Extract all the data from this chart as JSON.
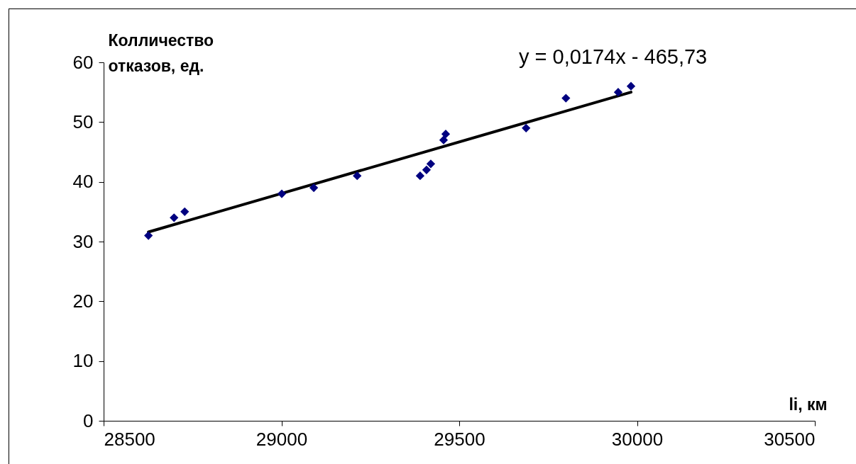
{
  "chart_data": {
    "type": "scatter",
    "xlabel": "li, км",
    "ylabel": "Колличество отказов, ед.",
    "x": [
      28626,
      28698,
      28728,
      29001,
      29091,
      29213,
      29390,
      29408,
      29420,
      29456,
      29462,
      29688,
      29800,
      29947,
      29983
    ],
    "series": [
      {
        "type": "scatter",
        "color": "#000080",
        "marker": "diamond",
        "values": [
          31,
          34,
          35,
          38,
          39,
          41,
          41,
          42,
          43,
          47,
          48,
          49,
          54,
          55,
          56
        ]
      },
      {
        "type": "line",
        "color": "#000000",
        "marker": "none",
        "line_style": "solid",
        "x": [
          28626,
          29983
        ],
        "values": [
          31.6,
          55.0
        ]
      }
    ],
    "annotations": [
      "y = 0,0174x - 465,73"
    ],
    "xlim": [
      28500,
      30500
    ],
    "xticks": [
      28500,
      29000,
      29500,
      30000,
      30500
    ],
    "ylim": [
      0,
      60
    ],
    "yticks": [
      0,
      10,
      20,
      30,
      40,
      50,
      60
    ],
    "grid": false
  }
}
